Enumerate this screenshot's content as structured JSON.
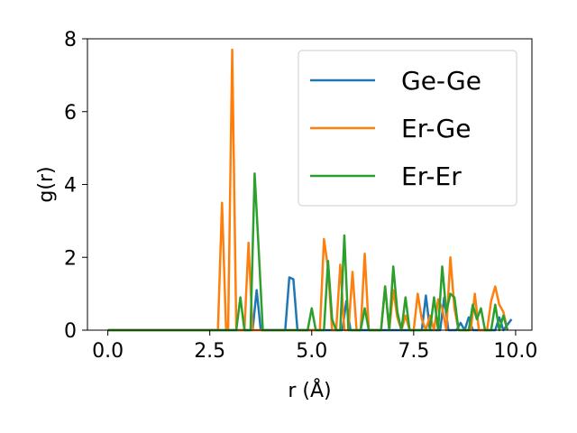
{
  "chart_data": {
    "type": "line",
    "xlabel": "r (Å)",
    "ylabel": "g(r)",
    "xlim": [
      -0.5,
      10.4
    ],
    "ylim": [
      0,
      8
    ],
    "x_ticks": [
      "0.0",
      "2.5",
      "5.0",
      "7.5",
      "10.0"
    ],
    "y_ticks": [
      "0",
      "2",
      "4",
      "6",
      "8"
    ],
    "grid": false,
    "legend_position": "top-right",
    "series": [
      {
        "name": "Ge-Ge",
        "color": "#1f77b4",
        "points": [
          [
            0,
            0
          ],
          [
            3.55,
            0
          ],
          [
            3.65,
            1.1
          ],
          [
            3.75,
            0
          ],
          [
            4.35,
            0
          ],
          [
            4.45,
            1.45
          ],
          [
            4.55,
            1.4
          ],
          [
            4.65,
            0
          ],
          [
            5.75,
            0
          ],
          [
            5.85,
            0.8
          ],
          [
            5.95,
            0
          ],
          [
            7.7,
            0
          ],
          [
            7.8,
            0.95
          ],
          [
            7.9,
            0
          ],
          [
            8.15,
            0
          ],
          [
            8.25,
            0.9
          ],
          [
            8.35,
            0
          ],
          [
            8.55,
            0
          ],
          [
            8.65,
            0.2
          ],
          [
            8.75,
            0
          ],
          [
            8.85,
            0.35
          ],
          [
            8.95,
            0
          ],
          [
            9.5,
            0
          ],
          [
            9.6,
            0.35
          ],
          [
            9.7,
            0
          ],
          [
            9.9,
            0.3
          ]
        ]
      },
      {
        "name": "Er-Ge",
        "color": "#ff7f0e",
        "points": [
          [
            0,
            0
          ],
          [
            2.7,
            0
          ],
          [
            2.8,
            3.5
          ],
          [
            2.9,
            0
          ],
          [
            2.95,
            0
          ],
          [
            3.05,
            7.7
          ],
          [
            3.15,
            0
          ],
          [
            3.35,
            0
          ],
          [
            3.45,
            2.4
          ],
          [
            3.55,
            0
          ],
          [
            5.2,
            0
          ],
          [
            5.3,
            2.5
          ],
          [
            5.4,
            1.7
          ],
          [
            5.5,
            0
          ],
          [
            5.6,
            0
          ],
          [
            5.7,
            1.8
          ],
          [
            5.8,
            0
          ],
          [
            5.9,
            0
          ],
          [
            6.0,
            1.6
          ],
          [
            6.1,
            0
          ],
          [
            6.2,
            0
          ],
          [
            6.3,
            2.1
          ],
          [
            6.4,
            0
          ],
          [
            6.7,
            0
          ],
          [
            6.8,
            1.2
          ],
          [
            6.9,
            0
          ],
          [
            7.0,
            1.1
          ],
          [
            7.1,
            0.35
          ],
          [
            7.2,
            0
          ],
          [
            7.3,
            0.4
          ],
          [
            7.4,
            0
          ],
          [
            7.5,
            0
          ],
          [
            7.6,
            1.0
          ],
          [
            7.7,
            0.3
          ],
          [
            7.8,
            0
          ],
          [
            7.9,
            0.4
          ],
          [
            8.0,
            0
          ],
          [
            8.1,
            0.85
          ],
          [
            8.2,
            0.6
          ],
          [
            8.3,
            0
          ],
          [
            8.4,
            2.0
          ],
          [
            8.5,
            0.6
          ],
          [
            8.6,
            0
          ],
          [
            8.9,
            0
          ],
          [
            9.0,
            1.0
          ],
          [
            9.1,
            0
          ],
          [
            9.3,
            0
          ],
          [
            9.4,
            0.8
          ],
          [
            9.5,
            1.2
          ],
          [
            9.6,
            0.7
          ],
          [
            9.7,
            0.5
          ],
          [
            9.8,
            0
          ]
        ]
      },
      {
        "name": "Er-Er",
        "color": "#2ca02c",
        "points": [
          [
            0,
            0
          ],
          [
            3.15,
            0
          ],
          [
            3.25,
            0.9
          ],
          [
            3.35,
            0
          ],
          [
            3.5,
            0
          ],
          [
            3.6,
            4.3
          ],
          [
            3.7,
            2.2
          ],
          [
            3.8,
            0
          ],
          [
            4.9,
            0
          ],
          [
            5.0,
            0.6
          ],
          [
            5.1,
            0
          ],
          [
            5.3,
            0
          ],
          [
            5.4,
            1.9
          ],
          [
            5.5,
            0.3
          ],
          [
            5.6,
            0
          ],
          [
            5.7,
            0
          ],
          [
            5.8,
            2.6
          ],
          [
            5.9,
            0
          ],
          [
            6.2,
            0
          ],
          [
            6.3,
            0.6
          ],
          [
            6.4,
            0
          ],
          [
            6.7,
            0
          ],
          [
            6.8,
            1.2
          ],
          [
            6.9,
            0
          ],
          [
            7.0,
            1.75
          ],
          [
            7.1,
            0.5
          ],
          [
            7.2,
            0
          ],
          [
            7.3,
            0.9
          ],
          [
            7.4,
            0
          ],
          [
            7.9,
            0
          ],
          [
            8.0,
            0.9
          ],
          [
            8.1,
            0
          ],
          [
            8.2,
            1.75
          ],
          [
            8.3,
            0.5
          ],
          [
            8.4,
            1.0
          ],
          [
            8.5,
            0.9
          ],
          [
            8.6,
            0
          ],
          [
            8.85,
            0
          ],
          [
            8.95,
            0.7
          ],
          [
            9.05,
            0.3
          ],
          [
            9.15,
            0.6
          ],
          [
            9.25,
            0
          ],
          [
            9.4,
            0
          ],
          [
            9.5,
            0.7
          ],
          [
            9.6,
            0
          ],
          [
            9.7,
            0.4
          ],
          [
            9.8,
            0
          ]
        ]
      }
    ]
  }
}
